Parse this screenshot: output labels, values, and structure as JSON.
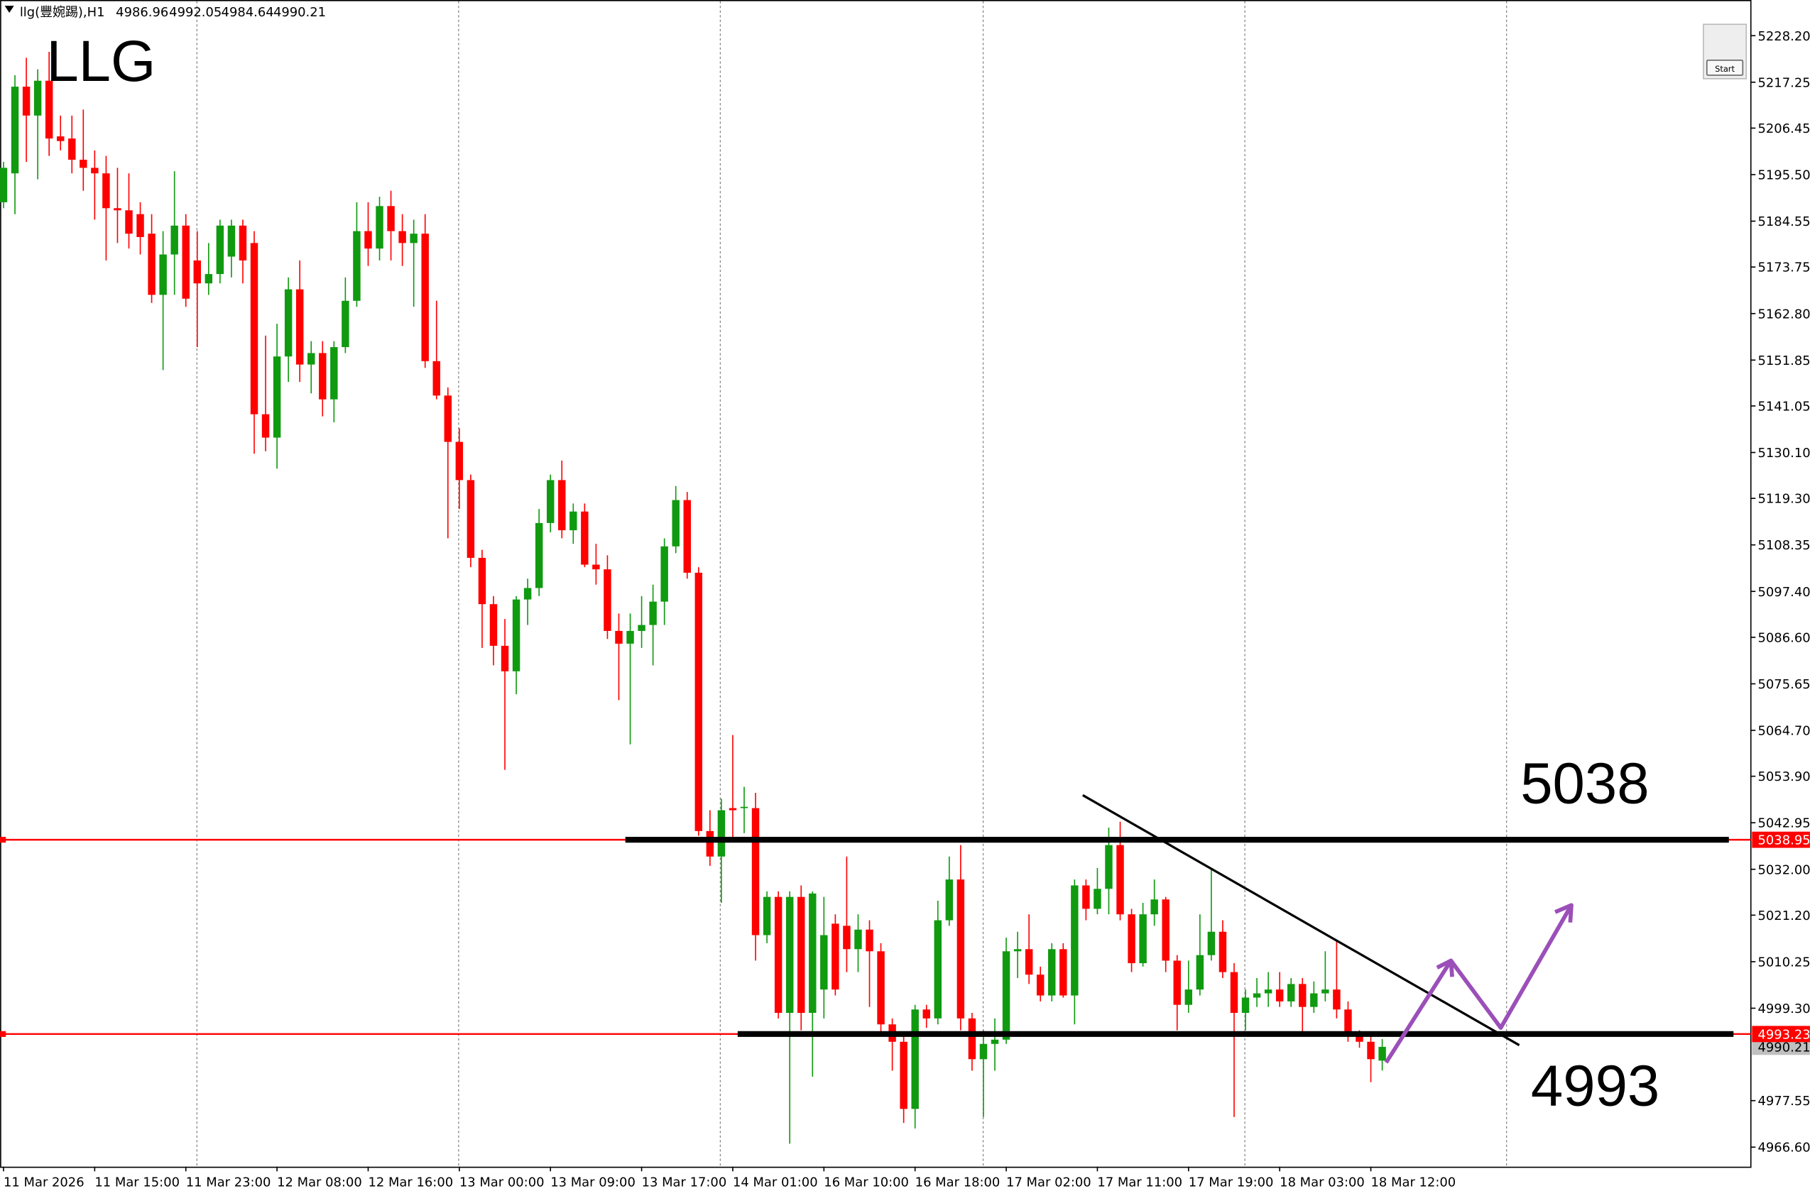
{
  "chart_data": {
    "type": "candlestick",
    "title": "llg(豐婉踢),H1",
    "annotations": [
      "LLG",
      "5038",
      "4993"
    ],
    "button": "Start",
    "up_color": "#109a10",
    "down_color": "#ff0000",
    "level_color": "#ff0000",
    "categories": [
      "11 Mar 2026",
      null,
      null,
      null,
      null,
      null,
      null,
      null,
      "11 Mar 15:00",
      null,
      null,
      null,
      null,
      null,
      null,
      null,
      "11 Mar 23:00",
      null,
      null,
      null,
      null,
      null,
      null,
      null,
      "12 Mar 08:00",
      null,
      null,
      null,
      null,
      null,
      null,
      null,
      "12 Mar 16:00",
      null,
      null,
      null,
      null,
      null,
      null,
      null,
      "13 Mar 00:00",
      null,
      null,
      null,
      null,
      null,
      null,
      null,
      "13 Mar 09:00",
      null,
      null,
      null,
      null,
      null,
      null,
      null,
      "13 Mar 17:00",
      null,
      null,
      null,
      null,
      null,
      null,
      null,
      "14 Mar 01:00",
      null,
      null,
      null,
      null,
      null,
      null,
      null,
      "16 Mar 10:00",
      null,
      null,
      null,
      null,
      null,
      null,
      null,
      "16 Mar 18:00",
      null,
      null,
      null,
      null,
      null,
      null,
      null,
      "17 Mar 02:00",
      null,
      null,
      null,
      null,
      null,
      null,
      null,
      "17 Mar 11:00",
      null,
      null,
      null,
      null,
      null,
      null,
      null,
      "17 Mar 19:00",
      null,
      null,
      null,
      null,
      null,
      null,
      null,
      "18 Mar 03:00",
      null,
      null,
      null,
      null,
      null,
      null,
      null,
      "18 Mar 12:00",
      null
    ],
    "open": [
      5189.0,
      5195.8,
      5216.2,
      5209.4,
      5217.6,
      5204.5,
      5204.0,
      5199.0,
      5197.1,
      5195.8,
      5187.6,
      5187.1,
      5186.2,
      5181.6,
      5167.2,
      5176.7,
      5183.5,
      5175.3,
      5169.9,
      5172.1,
      5176.2,
      5183.5,
      5179.4,
      5139.1,
      5133.6,
      5152.7,
      5168.5,
      5150.8,
      5153.5,
      5142.6,
      5154.9,
      5165.8,
      5182.2,
      5178.1,
      5188.1,
      5182.2,
      5179.4,
      5181.6,
      5151.6,
      5143.5,
      5132.6,
      5123.6,
      5105.3,
      5094.4,
      5084.6,
      5078.6,
      5095.5,
      5098.2,
      5113.5,
      5123.6,
      5111.8,
      5116.2,
      5103.7,
      5102.6,
      5088.1,
      5085.1,
      5088.1,
      5089.5,
      5095.0,
      5108.0,
      5118.9,
      5101.8,
      5041.0,
      5035.0,
      5046.4,
      5046.4,
      5046.4,
      5016.5,
      5025.5,
      4998.2,
      5025.5,
      4998.2,
      5003.7,
      5019.2,
      5018.7,
      5013.2,
      5017.8,
      5012.7,
      4995.5,
      4991.4,
      4975.6,
      4999.0,
      4996.9,
      5020.0,
      5029.6,
      4996.9,
      4987.3,
      4990.9,
      4991.9,
      5012.7,
      5013.2,
      5007.2,
      5002.3,
      5013.2,
      5002.3,
      5028.2,
      5022.7,
      5027.4,
      5037.7,
      5021.4,
      5009.9,
      5021.4,
      5024.9,
      5010.5,
      5000.1,
      5003.7,
      5011.8,
      5017.3,
      5007.8,
      4998.2,
      5001.8,
      5002.8,
      5003.7,
      5000.9,
      5005.0,
      4999.6,
      5002.8,
      5003.7,
      4999.0,
      4992.8,
      4991.4,
      4986.96
    ],
    "high": [
      5198.5,
      5218.9,
      5223.0,
      5220.3,
      5224.4,
      5209.4,
      5209.4,
      5210.8,
      5201.2,
      5199.9,
      5197.1,
      5195.8,
      5189.0,
      5186.2,
      5182.2,
      5196.3,
      5186.2,
      5182.2,
      5179.4,
      5184.9,
      5184.9,
      5184.9,
      5182.2,
      5157.6,
      5160.4,
      5171.3,
      5175.3,
      5156.3,
      5156.3,
      5156.3,
      5171.3,
      5189.0,
      5189.0,
      5190.3,
      5191.7,
      5186.2,
      5184.9,
      5186.2,
      5165.8,
      5145.4,
      5135.8,
      5124.9,
      5107.2,
      5096.3,
      5090.9,
      5096.3,
      5100.4,
      5116.8,
      5124.9,
      5128.2,
      5118.1,
      5118.1,
      5108.6,
      5105.9,
      5092.2,
      5092.2,
      5096.3,
      5099.0,
      5109.9,
      5122.2,
      5120.8,
      5103.1,
      5045.9,
      5048.6,
      5063.6,
      5051.4,
      5050.0,
      5026.8,
      5026.8,
      5026.8,
      5028.2,
      5026.8,
      5025.5,
      5021.4,
      5035.0,
      5021.4,
      5020.0,
      5014.6,
      4996.9,
      4992.8,
      5000.1,
      5000.1,
      5024.6,
      5035.0,
      5037.7,
      4998.2,
      4994.1,
      4996.9,
      5015.9,
      5017.3,
      5021.4,
      5009.1,
      5014.6,
      5014.6,
      5029.6,
      5029.6,
      5032.3,
      5041.8,
      5043.2,
      5022.7,
      5024.1,
      5029.6,
      5025.5,
      5011.8,
      5010.5,
      5021.4,
      5032.3,
      5020.0,
      5009.9,
      5003.7,
      5006.4,
      5007.8,
      5007.8,
      5006.4,
      5006.4,
      5005.6,
      5012.7,
      5015.4,
      5000.9,
      4994.1,
      4993.6,
      4992.05
    ],
    "low": [
      5187.6,
      5186.2,
      5198.5,
      5194.4,
      5199.9,
      5201.2,
      5195.8,
      5191.7,
      5184.9,
      5175.3,
      5179.4,
      5178.1,
      5176.7,
      5165.3,
      5149.5,
      5167.2,
      5164.4,
      5154.9,
      5167.2,
      5169.9,
      5171.3,
      5169.9,
      5129.8,
      5130.4,
      5126.3,
      5146.7,
      5146.7,
      5144.0,
      5138.6,
      5137.2,
      5153.5,
      5164.4,
      5174.0,
      5175.3,
      5175.3,
      5174.0,
      5164.4,
      5150.0,
      5142.6,
      5109.9,
      5116.8,
      5103.1,
      5084.1,
      5080.0,
      5055.4,
      5073.2,
      5089.5,
      5096.3,
      5111.3,
      5109.9,
      5108.6,
      5103.1,
      5099.0,
      5086.2,
      5071.8,
      5061.4,
      5084.1,
      5080.0,
      5089.5,
      5106.4,
      5100.4,
      5039.9,
      5032.8,
      5024.1,
      5039.1,
      5040.5,
      5010.5,
      5014.6,
      4996.9,
      4967.4,
      4994.1,
      4983.2,
      4996.9,
      5002.3,
      5007.8,
      5007.8,
      4999.6,
      4992.8,
      4984.6,
      4972.3,
      4971.0,
      4994.7,
      4995.5,
      5018.7,
      4994.1,
      4984.6,
      4973.7,
      4984.6,
      4990.9,
      5006.4,
      5005.0,
      5000.9,
      5000.9,
      5001.8,
      4995.5,
      5020.0,
      5021.4,
      5021.4,
      5020.0,
      5007.8,
      5009.1,
      5018.7,
      5007.8,
      4994.1,
      4998.2,
      5002.3,
      5010.5,
      5006.4,
      4973.7,
      4994.1,
      4999.6,
      4999.6,
      4999.6,
      4999.6,
      4992.8,
      4998.2,
      5000.9,
      4996.9,
      4991.4,
      4990.0,
      4981.9,
      4984.64
    ],
    "close": [
      5197.1,
      5216.2,
      5209.4,
      5217.6,
      5204.0,
      5203.4,
      5199.0,
      5197.1,
      5195.8,
      5187.6,
      5187.1,
      5181.6,
      5180.8,
      5167.2,
      5176.7,
      5183.5,
      5166.3,
      5169.9,
      5172.1,
      5183.5,
      5183.5,
      5175.3,
      5139.1,
      5133.6,
      5152.7,
      5168.5,
      5150.8,
      5153.5,
      5142.6,
      5154.9,
      5165.8,
      5182.2,
      5178.1,
      5188.1,
      5182.2,
      5179.4,
      5181.6,
      5151.6,
      5143.5,
      5132.6,
      5123.6,
      5105.3,
      5094.4,
      5084.6,
      5078.6,
      5095.5,
      5098.2,
      5113.5,
      5123.6,
      5111.8,
      5116.2,
      5103.7,
      5102.6,
      5088.1,
      5085.1,
      5088.1,
      5089.5,
      5095.0,
      5108.0,
      5118.9,
      5101.8,
      5041.0,
      5035.0,
      5045.9,
      5045.9,
      5046.7,
      5016.5,
      5025.5,
      4998.2,
      5025.5,
      4998.2,
      5026.3,
      5016.5,
      5003.7,
      5013.2,
      5017.8,
      5012.7,
      4995.5,
      4991.4,
      4975.6,
      4999.0,
      4996.9,
      5020.0,
      5029.6,
      4996.9,
      4987.3,
      4990.9,
      4991.9,
      5012.7,
      5013.2,
      5007.2,
      5002.3,
      5013.2,
      5002.3,
      5028.2,
      5022.7,
      5027.4,
      5037.7,
      5021.4,
      5009.9,
      5021.4,
      5024.9,
      5010.5,
      5000.1,
      5003.7,
      5011.8,
      5017.3,
      5007.8,
      4998.2,
      5001.8,
      5002.8,
      5003.7,
      5000.9,
      5005.0,
      4999.6,
      5002.8,
      5003.7,
      4999.0,
      4992.8,
      4991.4,
      4987.3,
      4990.21
    ],
    "levels": [
      {
        "value": 5038.95,
        "label": "5038.95"
      },
      {
        "value": 4993.23,
        "label": "4993.23"
      }
    ],
    "ylim": [
      4962.0,
      5236.6
    ],
    "yticks": [
      {
        "value": 5228.2,
        "label": "5228.20"
      },
      5217.25,
      5206.45,
      {
        "value": 5195.5,
        "label": "5195.50"
      },
      5184.55,
      5173.75,
      {
        "value": 5162.8,
        "label": "5162.80"
      },
      5151.85,
      5141.05,
      {
        "value": 5130.1,
        "label": "5130.10"
      },
      {
        "value": 5119.3,
        "label": "5119.30"
      },
      5108.35,
      {
        "value": 5097.4,
        "label": "5097.40"
      },
      {
        "value": 5086.6,
        "label": "5086.60"
      },
      5075.65,
      {
        "value": 5064.7,
        "label": "5064.70"
      },
      {
        "value": 5053.9,
        "label": "5053.90"
      },
      5042.95,
      {
        "value": 5032.0,
        "label": "5032.00"
      },
      {
        "value": 5021.2,
        "label": "5021.20"
      },
      5010.25,
      {
        "value": 4999.3,
        "label": "4999.30"
      },
      4977.55,
      {
        "value": 4966.6,
        "label": "4966.60"
      }
    ]
  }
}
